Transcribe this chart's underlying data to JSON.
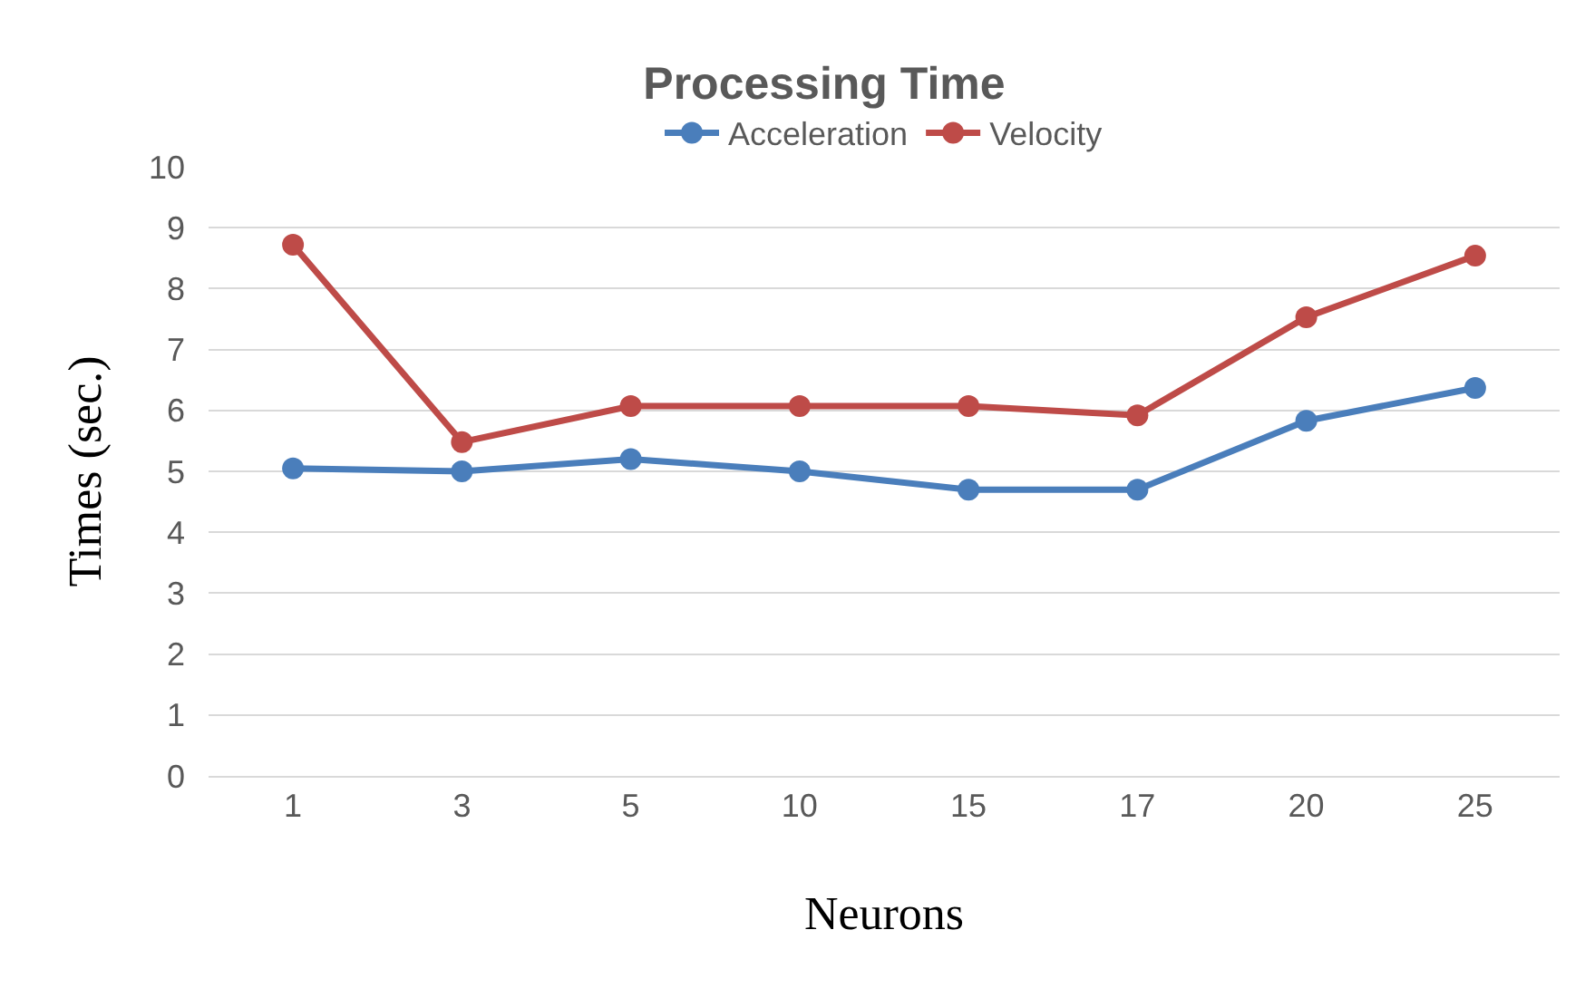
{
  "chart_data": {
    "type": "line",
    "title": "Processing Time",
    "xlabel": "Neurons",
    "ylabel": "Times (sec.)",
    "categories": [
      "1",
      "3",
      "5",
      "10",
      "15",
      "17",
      "20",
      "25"
    ],
    "series": [
      {
        "name": "Acceleration",
        "color": "#4a7ebb",
        "values": [
          5.05,
          5.0,
          5.2,
          5.0,
          4.7,
          4.7,
          5.83,
          6.37
        ]
      },
      {
        "name": "Velocity",
        "color": "#be4b48",
        "values": [
          8.72,
          5.48,
          6.07,
          6.07,
          6.07,
          5.92,
          7.53,
          8.54
        ]
      }
    ],
    "ylim": [
      0,
      10
    ],
    "yticks": [
      0,
      1,
      2,
      3,
      4,
      5,
      6,
      7,
      8,
      9,
      10
    ],
    "grid": "y",
    "legend": "top",
    "marker": "circle",
    "line_style": "solid"
  }
}
